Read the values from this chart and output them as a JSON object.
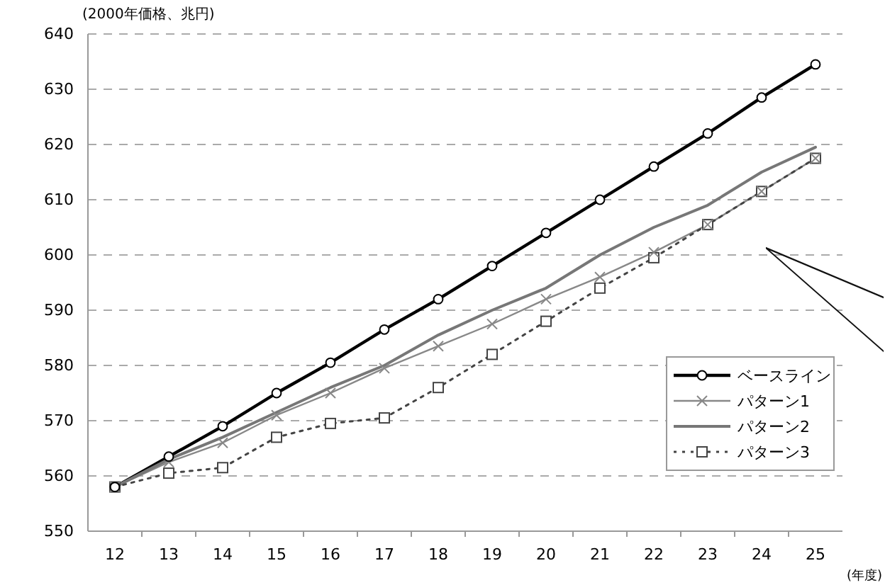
{
  "chart_data": {
    "type": "line",
    "ylabel": "(2000年価格、兆円)",
    "xlabel": "(年度)",
    "categories": [
      "12",
      "13",
      "14",
      "15",
      "16",
      "17",
      "18",
      "19",
      "20",
      "21",
      "22",
      "23",
      "24",
      "25"
    ],
    "series": [
      {
        "name": "ベースライン",
        "color": "#000000",
        "marker": "circle",
        "line_style": "solid",
        "values": [
          558,
          563.5,
          569,
          575,
          580.5,
          586.5,
          592,
          598,
          604,
          610,
          616,
          622,
          628.5,
          634.5
        ]
      },
      {
        "name": "パターン1",
        "color": "#888888",
        "marker": "cross",
        "line_style": "solid",
        "values": [
          558,
          562.5,
          566,
          571,
          575,
          579.5,
          583.5,
          587.5,
          592,
          596,
          600.5,
          605.5,
          611.5,
          617.5
        ]
      },
      {
        "name": "パターン2",
        "color": "#777777",
        "marker": "none",
        "line_style": "solid",
        "values": [
          558,
          563,
          567,
          571.5,
          576,
          580,
          585.5,
          590,
          594,
          600,
          605,
          609,
          615,
          619.5
        ]
      },
      {
        "name": "パターン3",
        "color": "#444444",
        "marker": "square",
        "line_style": "dotted",
        "values": [
          558,
          560.5,
          561.5,
          567,
          569.5,
          570.5,
          576,
          582,
          588,
          594,
          599.5,
          605.5,
          611.5,
          617.5
        ]
      }
    ],
    "ylim": [
      550,
      640
    ],
    "yticks": [
      550,
      560,
      570,
      580,
      590,
      600,
      610,
      620,
      630,
      640
    ],
    "grid": "y",
    "legend": "bottom right"
  }
}
